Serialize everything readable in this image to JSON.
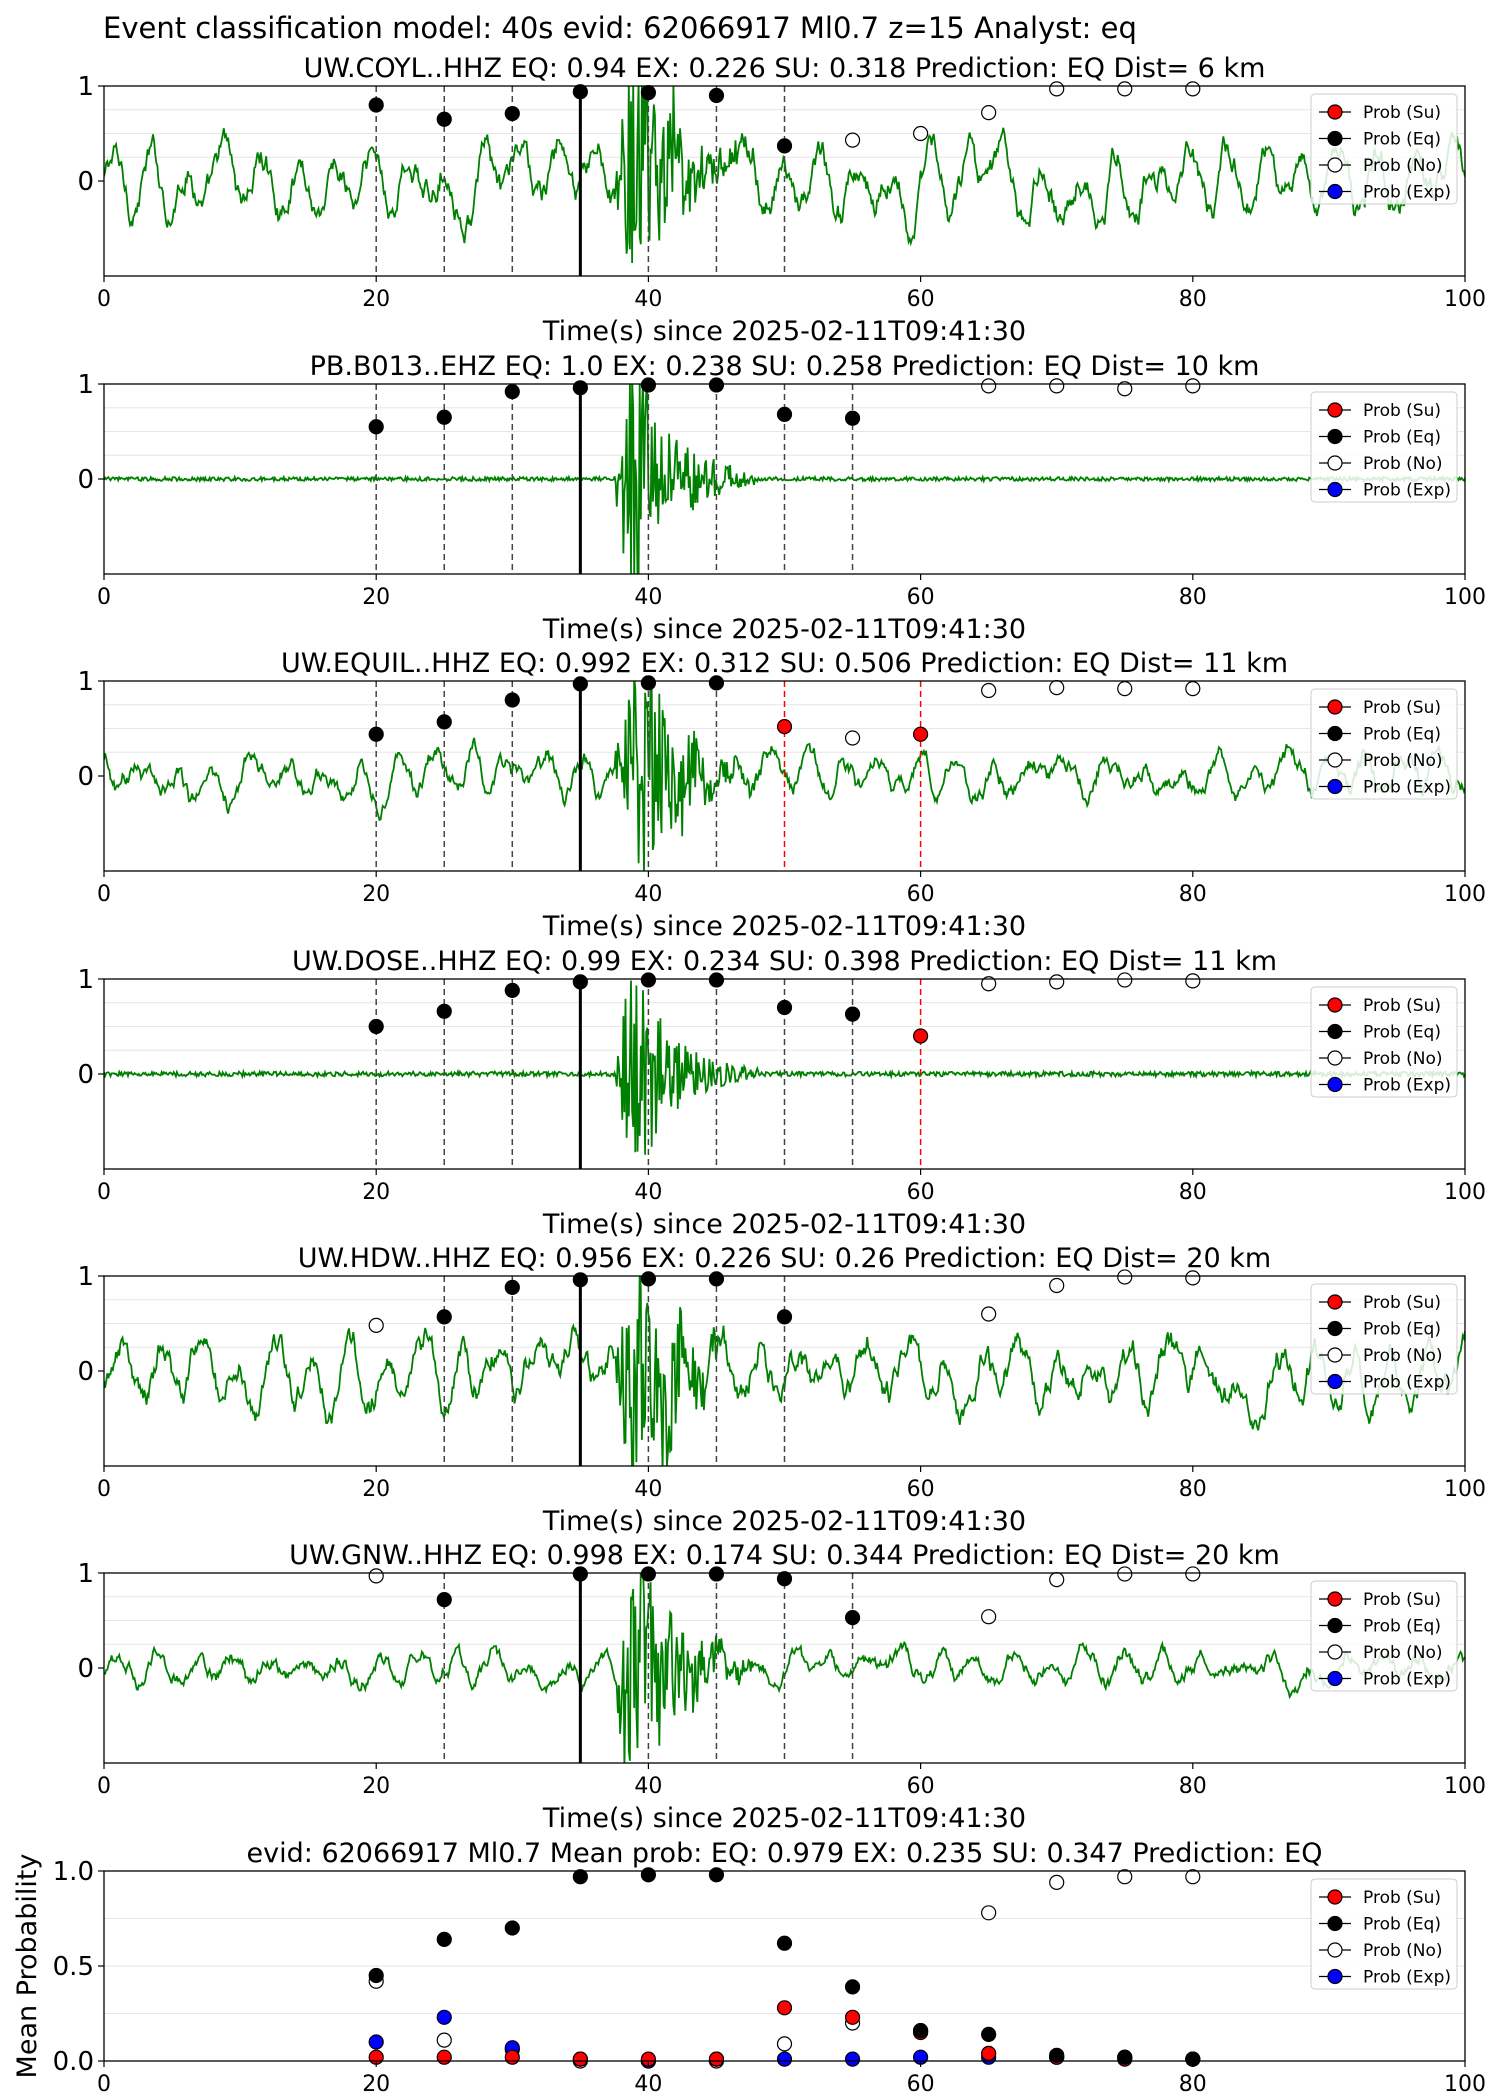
{
  "figure_title": "Event classification model: 40s evid: 62066917 Ml0.7 z=15 Analyst: eq",
  "legend_labels": [
    "Prob (Su)",
    "Prob (Eq)",
    "Prob (No)",
    "Prob (Exp)"
  ],
  "colors": {
    "waveform": "#008000",
    "su": "#ff0000",
    "eq": "#000000",
    "no": "#ffffff",
    "exp": "#0000ff"
  },
  "chart_data": [
    {
      "type": "line",
      "title": "UW.COYL..HHZ   EQ: 0.94  EX: 0.226  SU: 0.318   Prediction: EQ    Dist= 6 km",
      "xlabel": "Time(s) since 2025-02-11T09:41:30",
      "xlim": [
        0,
        100
      ],
      "ylim": [
        -1,
        1
      ],
      "xticks": [
        "0",
        "20",
        "40",
        "60",
        "80",
        "100"
      ],
      "yticks": [
        "0",
        "1"
      ],
      "pick_time": 35,
      "eq_x": [
        20,
        25,
        30,
        35,
        40,
        45,
        50
      ],
      "eq_y": [
        0.8,
        0.65,
        0.71,
        0.94,
        0.93,
        0.9,
        0.37
      ],
      "no_x": [
        55,
        60,
        65,
        70,
        75,
        80
      ],
      "no_y": [
        0.43,
        0.5,
        0.72,
        0.97,
        0.97,
        0.97
      ],
      "su_x": [],
      "su_y": [],
      "black_lines": [
        20,
        25,
        30,
        40,
        45,
        50
      ],
      "red_lines": [],
      "waveform": {
        "style": "noisy",
        "noise": 0.45,
        "burst_amp": 0.95
      }
    },
    {
      "type": "line",
      "title": "PB.B013..EHZ   EQ: 1.0  EX: 0.238  SU: 0.258   Prediction: EQ    Dist= 10 km",
      "xlabel": "Time(s) since 2025-02-11T09:41:30",
      "xlim": [
        0,
        100
      ],
      "ylim": [
        -1,
        1
      ],
      "xticks": [
        "0",
        "20",
        "40",
        "60",
        "80",
        "100"
      ],
      "yticks": [
        "0",
        "1"
      ],
      "pick_time": 35,
      "eq_x": [
        20,
        25,
        30,
        35,
        40,
        45,
        50,
        55
      ],
      "eq_y": [
        0.55,
        0.65,
        0.92,
        0.96,
        0.99,
        0.99,
        0.68,
        0.64
      ],
      "no_x": [
        65,
        70,
        75,
        80
      ],
      "no_y": [
        0.98,
        0.98,
        0.95,
        0.98
      ],
      "su_x": [],
      "su_y": [],
      "black_lines": [
        20,
        25,
        30,
        40,
        45,
        50,
        55
      ],
      "red_lines": [],
      "waveform": {
        "style": "quiet",
        "noise": 0.02,
        "burst_amp": 0.95
      }
    },
    {
      "type": "line",
      "title": "UW.EQUIL..HHZ   EQ: 0.992  EX: 0.312  SU: 0.506   Prediction: EQ    Dist= 11 km",
      "xlabel": "Time(s) since 2025-02-11T09:41:30",
      "xlim": [
        0,
        100
      ],
      "ylim": [
        -1,
        1
      ],
      "xticks": [
        "0",
        "20",
        "40",
        "60",
        "80",
        "100"
      ],
      "yticks": [
        "0",
        "1"
      ],
      "pick_time": 35,
      "eq_x": [
        20,
        25,
        30,
        35,
        40,
        45
      ],
      "eq_y": [
        0.44,
        0.57,
        0.8,
        0.97,
        0.98,
        0.98
      ],
      "no_x": [
        55,
        65,
        70,
        75,
        80
      ],
      "no_y": [
        0.4,
        0.9,
        0.93,
        0.92,
        0.92
      ],
      "su_x": [
        50,
        60
      ],
      "su_y": [
        0.52,
        0.44
      ],
      "black_lines": [
        20,
        25,
        30,
        40,
        45
      ],
      "red_lines": [
        50,
        60
      ],
      "waveform": {
        "style": "noisy",
        "noise": 0.3,
        "burst_amp": 0.9
      }
    },
    {
      "type": "line",
      "title": "UW.DOSE..HHZ   EQ: 0.99  EX: 0.234  SU: 0.398   Prediction: EQ    Dist= 11 km",
      "xlabel": "Time(s) since 2025-02-11T09:41:30",
      "xlim": [
        0,
        100
      ],
      "ylim": [
        -1,
        1
      ],
      "xticks": [
        "0",
        "20",
        "40",
        "60",
        "80",
        "100"
      ],
      "yticks": [
        "0",
        "1"
      ],
      "pick_time": 35,
      "eq_x": [
        20,
        25,
        30,
        35,
        40,
        45,
        50,
        55
      ],
      "eq_y": [
        0.5,
        0.66,
        0.88,
        0.97,
        0.99,
        0.99,
        0.7,
        0.63
      ],
      "no_x": [
        65,
        70,
        75,
        80
      ],
      "no_y": [
        0.95,
        0.97,
        0.99,
        0.98
      ],
      "su_x": [
        60
      ],
      "su_y": [
        0.4
      ],
      "black_lines": [
        20,
        25,
        30,
        40,
        45,
        50,
        55
      ],
      "red_lines": [
        60
      ],
      "waveform": {
        "style": "quiet",
        "noise": 0.025,
        "burst_amp": 0.7
      }
    },
    {
      "type": "line",
      "title": "UW.HDW..HHZ   EQ: 0.956  EX: 0.226  SU: 0.26   Prediction: EQ    Dist= 20 km",
      "xlabel": "Time(s) since 2025-02-11T09:41:30",
      "xlim": [
        0,
        100
      ],
      "ylim": [
        -1,
        1
      ],
      "xticks": [
        "0",
        "20",
        "40",
        "60",
        "80",
        "100"
      ],
      "yticks": [
        "0",
        "1"
      ],
      "pick_time": 35,
      "eq_x": [
        25,
        30,
        35,
        40,
        45,
        50
      ],
      "eq_y": [
        0.57,
        0.88,
        0.96,
        0.97,
        0.97,
        0.57
      ],
      "no_x": [
        20,
        65,
        70,
        75,
        80
      ],
      "no_y": [
        0.48,
        0.6,
        0.9,
        0.99,
        0.98
      ],
      "su_x": [],
      "su_y": [],
      "black_lines": [
        25,
        30,
        40,
        45,
        50
      ],
      "red_lines": [],
      "waveform": {
        "style": "noisy",
        "noise": 0.45,
        "burst_amp": 0.9
      }
    },
    {
      "type": "line",
      "title": "UW.GNW..HHZ   EQ: 0.998  EX: 0.174  SU: 0.344   Prediction: EQ    Dist= 20 km",
      "xlabel": "Time(s) since 2025-02-11T09:41:30",
      "xlim": [
        0,
        100
      ],
      "ylim": [
        -1,
        1
      ],
      "xticks": [
        "0",
        "20",
        "40",
        "60",
        "80",
        "100"
      ],
      "yticks": [
        "0",
        "1"
      ],
      "pick_time": 35,
      "eq_x": [
        25,
        35,
        40,
        45,
        50,
        55
      ],
      "eq_y": [
        0.72,
        0.99,
        0.99,
        0.99,
        0.94,
        0.53
      ],
      "no_x": [
        20,
        65,
        70,
        75,
        80
      ],
      "no_y": [
        0.97,
        0.54,
        0.93,
        0.99,
        0.99
      ],
      "su_x": [],
      "su_y": [],
      "black_lines": [
        25,
        40,
        45,
        50,
        55
      ],
      "red_lines": [],
      "waveform": {
        "style": "noisy",
        "noise": 0.22,
        "burst_amp": 0.9
      }
    },
    {
      "type": "scatter",
      "title": "evid: 62066917  Ml0.7   Mean prob:   EQ: 0.979  EX: 0.235  SU: 0.347   Prediction: EQ",
      "xlabel": "",
      "ylabel": "Mean Probability",
      "xlim": [
        0,
        100
      ],
      "ylim": [
        0,
        1
      ],
      "xticks": [
        "0",
        "20",
        "40",
        "60",
        "80",
        "100"
      ],
      "yticks": [
        "0.0",
        "0.5",
        "1.0"
      ],
      "x": [
        20,
        25,
        30,
        35,
        40,
        45,
        50,
        55,
        60,
        65,
        70,
        75,
        80
      ],
      "series": [
        {
          "name": "Prob (No)",
          "values": [
            0.42,
            0.11,
            0.06,
            0.0,
            0.0,
            0.0,
            0.09,
            0.2,
            0.16,
            0.78,
            0.94,
            0.97,
            0.97
          ]
        },
        {
          "name": "Prob (Exp)",
          "values": [
            0.1,
            0.23,
            0.07,
            0.01,
            0.0,
            0.01,
            0.01,
            0.01,
            0.02,
            0.02,
            0.02,
            0.02,
            0.01
          ]
        },
        {
          "name": "Prob (Su)",
          "values": [
            0.02,
            0.02,
            0.02,
            0.01,
            0.01,
            0.01,
            0.28,
            0.23,
            0.15,
            0.04,
            0.02,
            0.01,
            0.01
          ]
        },
        {
          "name": "Prob (Eq)",
          "values": [
            0.45,
            0.64,
            0.7,
            0.97,
            0.98,
            0.98,
            0.62,
            0.39,
            0.16,
            0.14,
            0.03,
            0.02,
            0.01
          ]
        }
      ]
    }
  ]
}
